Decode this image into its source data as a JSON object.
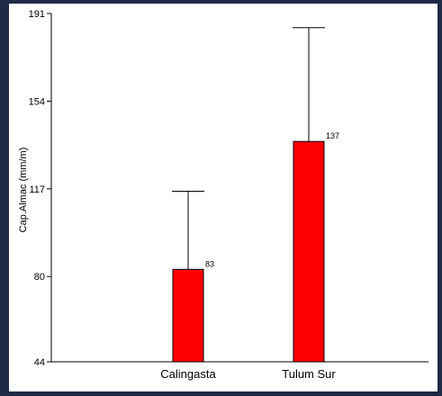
{
  "chart_data": {
    "type": "bar",
    "categories": [
      "Calingasta",
      "Tulum Sur"
    ],
    "values": [
      83,
      137
    ],
    "error_upper": [
      116,
      185
    ],
    "data_labels": [
      "83",
      "137"
    ],
    "ylabel": "Cap.Almac (mm/m)",
    "ylim": [
      44,
      191
    ],
    "yticks": [
      44,
      80,
      117,
      154,
      191
    ],
    "ytick_labels": [
      "44",
      "80",
      "117",
      "154",
      "191"
    ],
    "grid": false,
    "bar_color": "#ff0000"
  },
  "colors": {
    "background": "#1f2a44",
    "plot_background": "#ffffff"
  }
}
